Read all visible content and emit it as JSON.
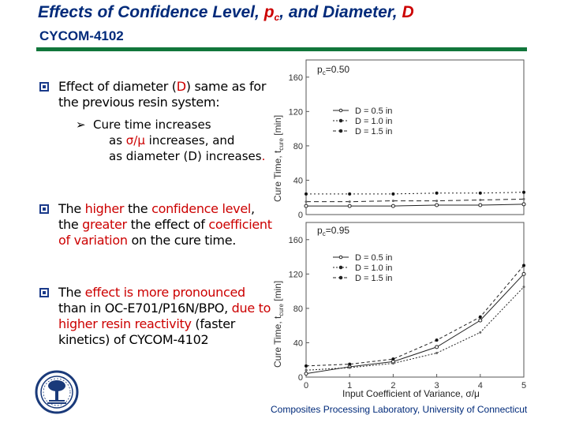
{
  "title": {
    "prefix": "Effects of Confidence Level, ",
    "p": "p",
    "p_sub": "c",
    "middle": ", and Diameter, ",
    "d": "D"
  },
  "subtitle": "CYCOM-4102",
  "bullets": [
    {
      "parts": [
        "Effect of diameter (",
        "D",
        ") same as for the previous resin system:"
      ]
    },
    {
      "parts": [
        "The ",
        "higher",
        " the ",
        "confidence level",
        ", the ",
        "greater",
        " the effect of ",
        "coefficient of variation",
        " on the cure time."
      ]
    },
    {
      "parts": [
        "The ",
        "effect is more pronounced",
        " than in OC-E701/P16N/BPO, ",
        "due to higher resin reactivity",
        " (faster kinetics) of CYCOM-4102"
      ]
    }
  ],
  "sub_bullet": {
    "line1": "Cure time increases",
    "line2a": "as ",
    "ratio": "σ/μ",
    "line2b": " increases, and",
    "line3a": "as diameter (D) increases",
    "line3b": "."
  },
  "chart_data": [
    {
      "type": "line",
      "annotation": "p_c=0.50",
      "ylabel": "Cure Time, t_cure [min]",
      "ylim": [
        0,
        180
      ],
      "yticks": [
        "0",
        "40",
        "80",
        "120",
        "160"
      ],
      "xlim": [
        0,
        5
      ],
      "series": [
        {
          "name": "D = 0.5 in",
          "x": [
            0,
            1,
            2,
            3,
            4,
            5
          ],
          "values": [
            10,
            10,
            10,
            11,
            11,
            12
          ]
        },
        {
          "name": "D = 1.0 in",
          "x": [
            0,
            1,
            2,
            3,
            4,
            5
          ],
          "values": [
            15,
            15,
            16,
            16,
            17,
            18
          ]
        },
        {
          "name": "D = 1.5 in",
          "x": [
            0,
            1,
            2,
            3,
            4,
            5
          ],
          "values": [
            24,
            24,
            24,
            25,
            25,
            26
          ]
        }
      ]
    },
    {
      "type": "line",
      "annotation": "p_c=0.95",
      "xlabel": "Input Coefficient of Variance, σ/μ",
      "ylabel": "Cure Time, t_cure [min]",
      "ylim": [
        0,
        180
      ],
      "yticks": [
        "0",
        "40",
        "80",
        "120",
        "160"
      ],
      "xlim": [
        0,
        5
      ],
      "xticks": [
        "0",
        "1",
        "2",
        "3",
        "4",
        "5"
      ],
      "series": [
        {
          "name": "D = 0.5 in",
          "x": [
            0,
            1,
            2,
            3,
            4,
            5
          ],
          "values": [
            4,
            12,
            18,
            35,
            66,
            120
          ]
        },
        {
          "name": "D = 1.0 in",
          "x": [
            0,
            1,
            2,
            3,
            4,
            5
          ],
          "values": [
            8,
            11,
            16,
            28,
            52,
            105
          ]
        },
        {
          "name": "D = 1.5 in",
          "x": [
            0,
            1,
            2,
            3,
            4,
            5
          ],
          "values": [
            13,
            15,
            21,
            43,
            70,
            130
          ]
        }
      ]
    }
  ],
  "chart_labels": {
    "top_annotation_main": "p",
    "top_annotation_sub": "c",
    "top_annotation_rest": "=0.50",
    "bottom_annotation_main": "p",
    "bottom_annotation_sub": "c",
    "bottom_annotation_rest": "=0.95",
    "ylabel_main": "Cure Time, t",
    "ylabel_sub": "cure",
    "ylabel_unit": " [min]",
    "xlabel": "Input Coefficient of Variance, σ/μ"
  },
  "footer": "Composites Processing Laboratory, University of Connecticut",
  "colors": {
    "title": "#002a7a",
    "accent": "#cc0000",
    "rule": "#11763b",
    "bullet_box": "#1a3a8a"
  },
  "logo_icon": "university-seal-icon"
}
